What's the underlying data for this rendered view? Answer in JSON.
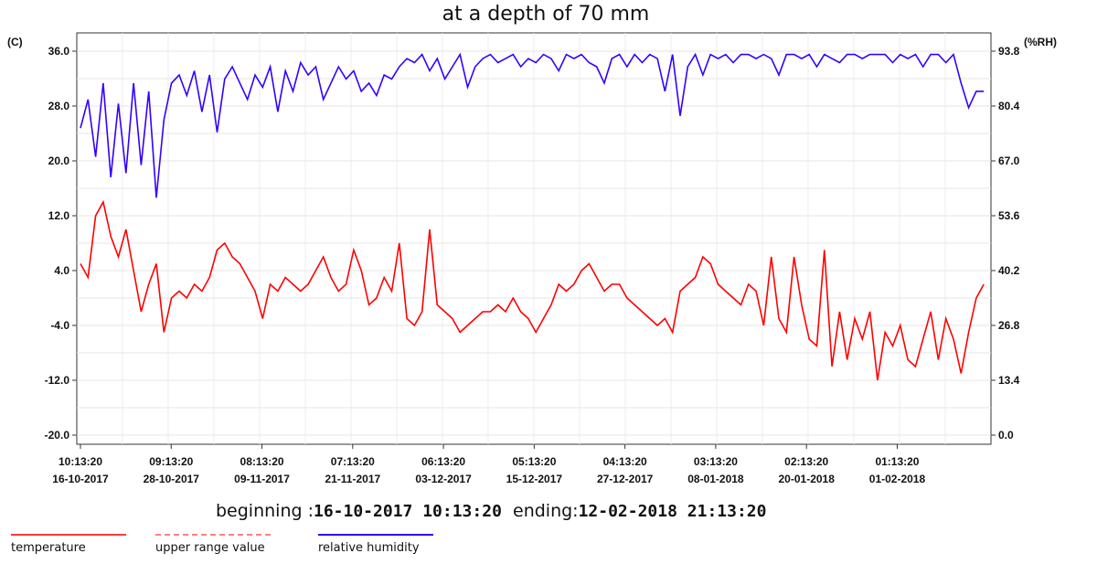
{
  "chart_data": {
    "type": "line",
    "title": "at a depth of 70 mm",
    "left_unit": "(C)",
    "right_unit": "(%RH)",
    "left_ticks": [
      "36.0",
      "28.0",
      "20.0",
      "12.0",
      "4.0",
      "-4.0",
      "-12.0",
      "-20.0"
    ],
    "right_ticks": [
      "93.8",
      "80.4",
      "67.0",
      "53.6",
      "40.2",
      "26.8",
      "13.4",
      "0.0"
    ],
    "ylim_left": [
      -20,
      36
    ],
    "ylim_right": [
      0,
      93.8
    ],
    "x_range": [
      "16-10-2017 10:13:20",
      "12-02-2018 21:13:20"
    ],
    "x_ticks": [
      {
        "time": "10:13:20",
        "date": "16-10-2017"
      },
      {
        "time": "09:13:20",
        "date": "28-10-2017"
      },
      {
        "time": "08:13:20",
        "date": "09-11-2017"
      },
      {
        "time": "07:13:20",
        "date": "21-11-2017"
      },
      {
        "time": "06:13:20",
        "date": "03-12-2017"
      },
      {
        "time": "05:13:20",
        "date": "15-12-2017"
      },
      {
        "time": "04:13:20",
        "date": "27-12-2017"
      },
      {
        "time": "03:13:20",
        "date": "08-01-2018"
      },
      {
        "time": "02:13:20",
        "date": "20-01-2018"
      },
      {
        "time": "01:13:20",
        "date": "01-02-2018"
      }
    ],
    "grid": true,
    "series": [
      {
        "name": "temperature",
        "axis": "left",
        "color": "#ff0000",
        "x_days": [
          0,
          1,
          2,
          3,
          4,
          5,
          6,
          7,
          8,
          9,
          10,
          11,
          12,
          13,
          14,
          15,
          16,
          17,
          18,
          19,
          20,
          21,
          22,
          23,
          24,
          25,
          26,
          27,
          28,
          29,
          30,
          31,
          32,
          33,
          34,
          35,
          36,
          37,
          38,
          39,
          40,
          41,
          42,
          43,
          44,
          45,
          46,
          47,
          48,
          49,
          50,
          51,
          52,
          53,
          54,
          55,
          56,
          57,
          58,
          59,
          60,
          61,
          62,
          63,
          64,
          65,
          66,
          67,
          68,
          69,
          70,
          71,
          72,
          73,
          74,
          75,
          76,
          77,
          78,
          79,
          80,
          81,
          82,
          83,
          84,
          85,
          86,
          87,
          88,
          89,
          90,
          91,
          92,
          93,
          94,
          95,
          96,
          97,
          98,
          99,
          100,
          101,
          102,
          103,
          104,
          105,
          106,
          107,
          108,
          109,
          110,
          111,
          112,
          113,
          114,
          115,
          116,
          117,
          118,
          119
        ],
        "values": [
          5,
          3,
          12,
          14,
          9,
          6,
          10,
          4,
          -2,
          2,
          5,
          -5,
          0,
          1,
          0,
          2,
          1,
          3,
          7,
          8,
          6,
          5,
          3,
          1,
          -3,
          2,
          1,
          3,
          2,
          1,
          2,
          4,
          6,
          3,
          1,
          2,
          7,
          4,
          -1,
          0,
          3,
          1,
          8,
          -3,
          -4,
          -2,
          10,
          -1,
          -2,
          -3,
          -5,
          -4,
          -3,
          -2,
          -2,
          -1,
          -2,
          0,
          -2,
          -3,
          -5,
          -3,
          -1,
          2,
          1,
          2,
          4,
          5,
          3,
          1,
          2,
          2,
          0,
          -1,
          -2,
          -3,
          -4,
          -3,
          -5,
          1,
          2,
          3,
          6,
          5,
          2,
          1,
          0,
          -1,
          2,
          1,
          -4,
          6,
          -3,
          -5,
          6,
          -1,
          -6,
          -7,
          7,
          -10,
          -2,
          -9,
          -3,
          -6,
          -2,
          -12,
          -5,
          -7,
          -4,
          -9,
          -10,
          -6,
          -2,
          -9,
          -3,
          -6,
          -11,
          -5,
          0,
          2
        ]
      },
      {
        "name": "relative humidity",
        "axis": "right",
        "color": "#3300ff",
        "x_days": [
          0,
          1,
          2,
          3,
          4,
          5,
          6,
          7,
          8,
          9,
          10,
          11,
          12,
          13,
          14,
          15,
          16,
          17,
          18,
          19,
          20,
          21,
          22,
          23,
          24,
          25,
          26,
          27,
          28,
          29,
          30,
          31,
          32,
          33,
          34,
          35,
          36,
          37,
          38,
          39,
          40,
          41,
          42,
          43,
          44,
          45,
          46,
          47,
          48,
          49,
          50,
          51,
          52,
          53,
          54,
          55,
          56,
          57,
          58,
          59,
          60,
          61,
          62,
          63,
          64,
          65,
          66,
          67,
          68,
          69,
          70,
          71,
          72,
          73,
          74,
          75,
          76,
          77,
          78,
          79,
          80,
          81,
          82,
          83,
          84,
          85,
          86,
          87,
          88,
          89,
          90,
          91,
          92,
          93,
          94,
          95,
          96,
          97,
          98,
          99,
          100,
          101,
          102,
          103,
          104,
          105,
          106,
          107,
          108,
          109,
          110,
          111,
          112,
          113,
          114,
          115,
          116,
          117,
          118,
          119
        ],
        "values": [
          75,
          82,
          68,
          86,
          63,
          81,
          64,
          86,
          66,
          84,
          58,
          77,
          86,
          88,
          83,
          89,
          79,
          88,
          74,
          87,
          90,
          86,
          82,
          88,
          85,
          90,
          79,
          89,
          84,
          91,
          88,
          90,
          82,
          86,
          90,
          87,
          89,
          84,
          86,
          83,
          88,
          87,
          90,
          92,
          91,
          93,
          89,
          92,
          87,
          90,
          93,
          85,
          90,
          92,
          93,
          91,
          92,
          93,
          90,
          92,
          91,
          93,
          92,
          89,
          93,
          92,
          93,
          91,
          90,
          86,
          92,
          93,
          90,
          93,
          91,
          93,
          92,
          84,
          93,
          78,
          90,
          93,
          88,
          93,
          92,
          93,
          91,
          93,
          93,
          92,
          93,
          92,
          88,
          93,
          93,
          92,
          93,
          90,
          93,
          92,
          91,
          93,
          93,
          92,
          93,
          93,
          93,
          91,
          93,
          92,
          93,
          90,
          93,
          93,
          91,
          93,
          86,
          80,
          84,
          84
        ]
      }
    ],
    "beginning_label": "beginning :",
    "beginning_value": "16-10-2017 10:13:20",
    "ending_label": "ending:",
    "ending_value": "12-02-2018 21:13:20",
    "legend": [
      {
        "label": "temperature",
        "color": "#ff3b3b",
        "style": "solid"
      },
      {
        "label": "upper range value",
        "color": "#ff8080",
        "style": "dashed"
      },
      {
        "label": "relative humidity",
        "color": "#3300ff",
        "style": "solid"
      }
    ]
  }
}
